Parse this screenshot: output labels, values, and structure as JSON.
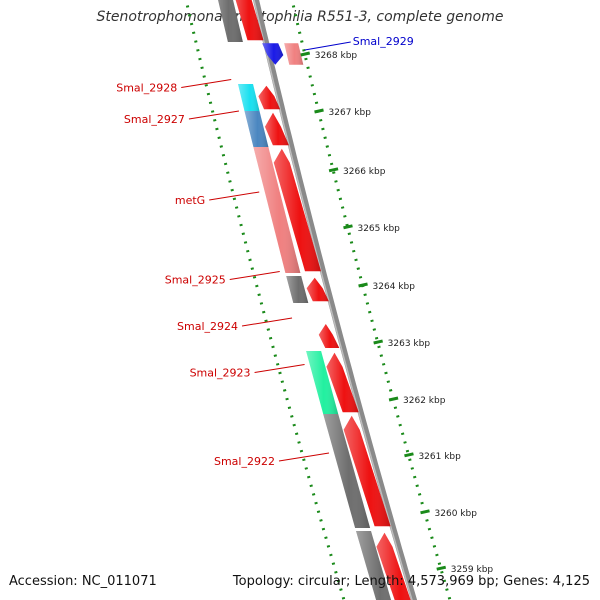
{
  "title": "Stenotrophomonas maltophilia R551-3, complete genome",
  "footer": {
    "accession": "Accession: NC_011071",
    "summary": "Topology: circular; Length: 4,573,969 bp; Genes: 4,125"
  },
  "colors": {
    "backbone": "#8a8a8a",
    "ruler": "#1a8a1a",
    "cds_red": "#ee1111",
    "label_red": "#cc0000",
    "label_blue": "#0000cc"
  },
  "ruler_ticks": [
    {
      "label": "3268 kbp",
      "v": 0.09
    },
    {
      "label": "3267 kbp",
      "v": 0.185
    },
    {
      "label": "3266 kbp",
      "v": 0.283
    },
    {
      "label": "3265 kbp",
      "v": 0.378
    },
    {
      "label": "3264 kbp",
      "v": 0.475
    },
    {
      "label": "3263 kbp",
      "v": 0.57
    },
    {
      "label": "3262 kbp",
      "v": 0.665
    },
    {
      "label": "3261 kbp",
      "v": 0.758
    },
    {
      "label": "3260 kbp",
      "v": 0.853
    },
    {
      "label": "3259 kbp",
      "v": 0.947
    }
  ],
  "genes": [
    {
      "id": "top-gray-gene",
      "label": "",
      "color": "#6e6e6e",
      "strand": "plus",
      "start": -0.05,
      "end": 0.07
    },
    {
      "id": "Smal_2929",
      "label": "Smal_2929",
      "color": "#1a1ae6",
      "strand": "minus",
      "start": 0.072,
      "end": 0.108,
      "label_color": "#0000cc",
      "label_side": "right"
    },
    {
      "id": "Smal_2928",
      "label": "Smal_2928",
      "color": "#19e0f0",
      "strand": "plus",
      "start": 0.14,
      "end": 0.185,
      "label_side": "left"
    },
    {
      "id": "Smal_2927",
      "label": "Smal_2927",
      "color": "#4a86c0",
      "strand": "plus",
      "start": 0.185,
      "end": 0.245,
      "label_side": "left"
    },
    {
      "id": "metG",
      "label": "metG",
      "color": "#f08080",
      "strand": "plus",
      "start": 0.245,
      "end": 0.455,
      "label_side": "left"
    },
    {
      "id": "Smal_2925",
      "label": "Smal_2925",
      "color": "#6e6e6e",
      "strand": "plus",
      "start": 0.46,
      "end": 0.505,
      "label_side": "left"
    },
    {
      "id": "Smal_2924",
      "label": "Smal_2924",
      "color": "#ee1111",
      "strand": "plus",
      "start": 0.54,
      "end": 0.58,
      "label_side": "left"
    },
    {
      "id": "Smal_2923",
      "label": "Smal_2923",
      "color": "#22f0a0",
      "strand": "plus",
      "start": 0.585,
      "end": 0.69,
      "label_side": "left"
    },
    {
      "id": "Smal_2922",
      "label": "Smal_2922",
      "color": "#6e6e6e",
      "strand": "plus",
      "start": 0.69,
      "end": 0.88,
      "label_side": "left"
    },
    {
      "id": "bottom-gray-gene",
      "label": "",
      "color": "#6e6e6e",
      "strand": "plus",
      "start": 0.885,
      "end": 1.05
    }
  ]
}
